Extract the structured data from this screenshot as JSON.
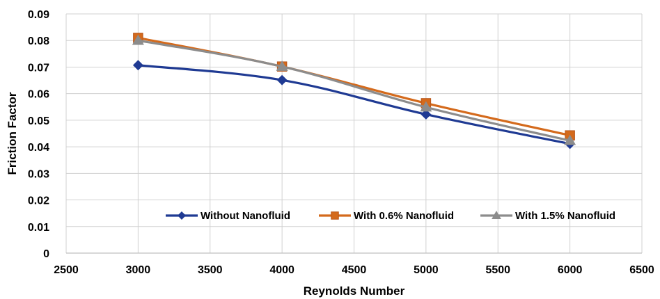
{
  "chart_data": {
    "type": "line",
    "xlabel": "Reynolds Number",
    "ylabel": "Friction Factor",
    "xlim": [
      2500,
      6500
    ],
    "ylim": [
      0,
      0.09
    ],
    "x_ticks": [
      "2500",
      "3000",
      "3500",
      "4000",
      "4500",
      "5000",
      "5500",
      "6000",
      "6500"
    ],
    "y_ticks": [
      "0",
      "0.01",
      "0.02",
      "0.03",
      "0.04",
      "0.05",
      "0.06",
      "0.07",
      "0.08",
      "0.09"
    ],
    "grid": true,
    "legend_position": "bottom-right",
    "x": [
      3000,
      4000,
      5000,
      6000
    ],
    "series": [
      {
        "name": "Without Nanofluid",
        "values": [
          0.0707,
          0.0651,
          0.0522,
          0.0411
        ],
        "color": "#1f3a93",
        "marker": "diamond"
      },
      {
        "name": "With 0.6% Nanofluid",
        "values": [
          0.081,
          0.0702,
          0.0564,
          0.0443
        ],
        "color": "#d46a1c",
        "marker": "square"
      },
      {
        "name": "With 1.5% Nanofluid",
        "values": [
          0.08,
          0.0702,
          0.0549,
          0.0423
        ],
        "color": "#8c8c8c",
        "marker": "triangle"
      }
    ]
  }
}
